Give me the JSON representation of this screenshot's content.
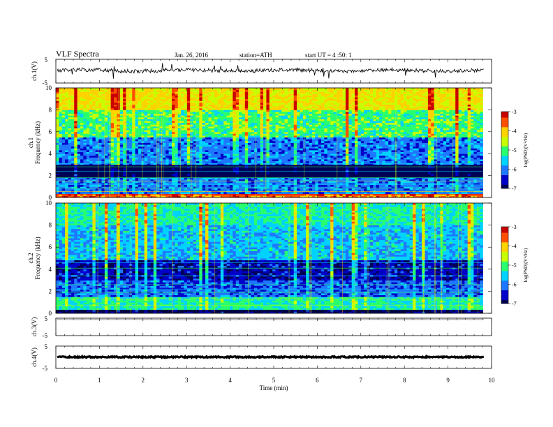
{
  "header": {
    "title": "VLF Spectra",
    "date": "Jan. 26, 2016",
    "station": "station=ATH",
    "start": "start  UT  =   4  :50: 1"
  },
  "colors": {
    "colormap": [
      "#000055",
      "#0000c8",
      "#1e78ff",
      "#00d2ff",
      "#28ff6e",
      "#c8ff00",
      "#ffd200",
      "#ff5000",
      "#c80000",
      "#ffffff"
    ]
  },
  "chart_data": [
    {
      "type": "line",
      "panel": "ch1-waveform",
      "ylabel": "ch.1(V)",
      "yticks": [
        "5",
        "-5"
      ],
      "ylim": [
        -5,
        5
      ],
      "trace_level": 0.3,
      "xlim": [
        0,
        10
      ]
    },
    {
      "type": "heatmap",
      "panel": "ch1-spectrogram",
      "ylabel": "ch.1\nFrequency (kHz)",
      "ylabel_lines": [
        "ch.1",
        "Frequency (kHz)"
      ],
      "yticks": [
        "0",
        "2",
        "4",
        "6",
        "8",
        "10"
      ],
      "ylim": [
        0,
        10
      ],
      "xlim": [
        0,
        9.8
      ],
      "colorbar": {
        "label": "log(PSD)(V²/Hz)",
        "ticks": [
          "-3",
          "-4",
          "-5",
          "-6",
          "-7"
        ],
        "range": [
          -7,
          -3
        ]
      }
    },
    {
      "type": "heatmap",
      "panel": "ch2-spectrogram",
      "ylabel": "ch.2\nFrequency (kHz)",
      "ylabel_lines": [
        "ch.2",
        "Frequency (kHz)"
      ],
      "yticks": [
        "0",
        "2",
        "4",
        "6",
        "8",
        "10"
      ],
      "ylim": [
        0,
        10
      ],
      "xlim": [
        0,
        9.8
      ],
      "colorbar": {
        "label": "log(PSD)(V²/Hz)",
        "ticks": [
          "-3",
          "-4",
          "-5",
          "-6",
          "-7"
        ],
        "range": [
          -7,
          -3
        ]
      }
    },
    {
      "type": "line",
      "panel": "ch3-waveform",
      "ylabel": "ch.3(V)",
      "yticks": [
        "5",
        "-5"
      ],
      "ylim": [
        -5,
        5
      ],
      "trace_level": 4.2,
      "xlim": [
        0,
        10
      ]
    },
    {
      "type": "line",
      "panel": "ch4-waveform",
      "ylabel": "ch.4(V)",
      "yticks": [
        "5",
        "-5"
      ],
      "ylim": [
        -5,
        5
      ],
      "trace_level": 0.1,
      "xlim": [
        0,
        10
      ],
      "xlabel": "Time  (min)",
      "xticks": [
        "0",
        "1",
        "2",
        "3",
        "4",
        "5",
        "6",
        "7",
        "8",
        "9",
        "10"
      ]
    }
  ]
}
